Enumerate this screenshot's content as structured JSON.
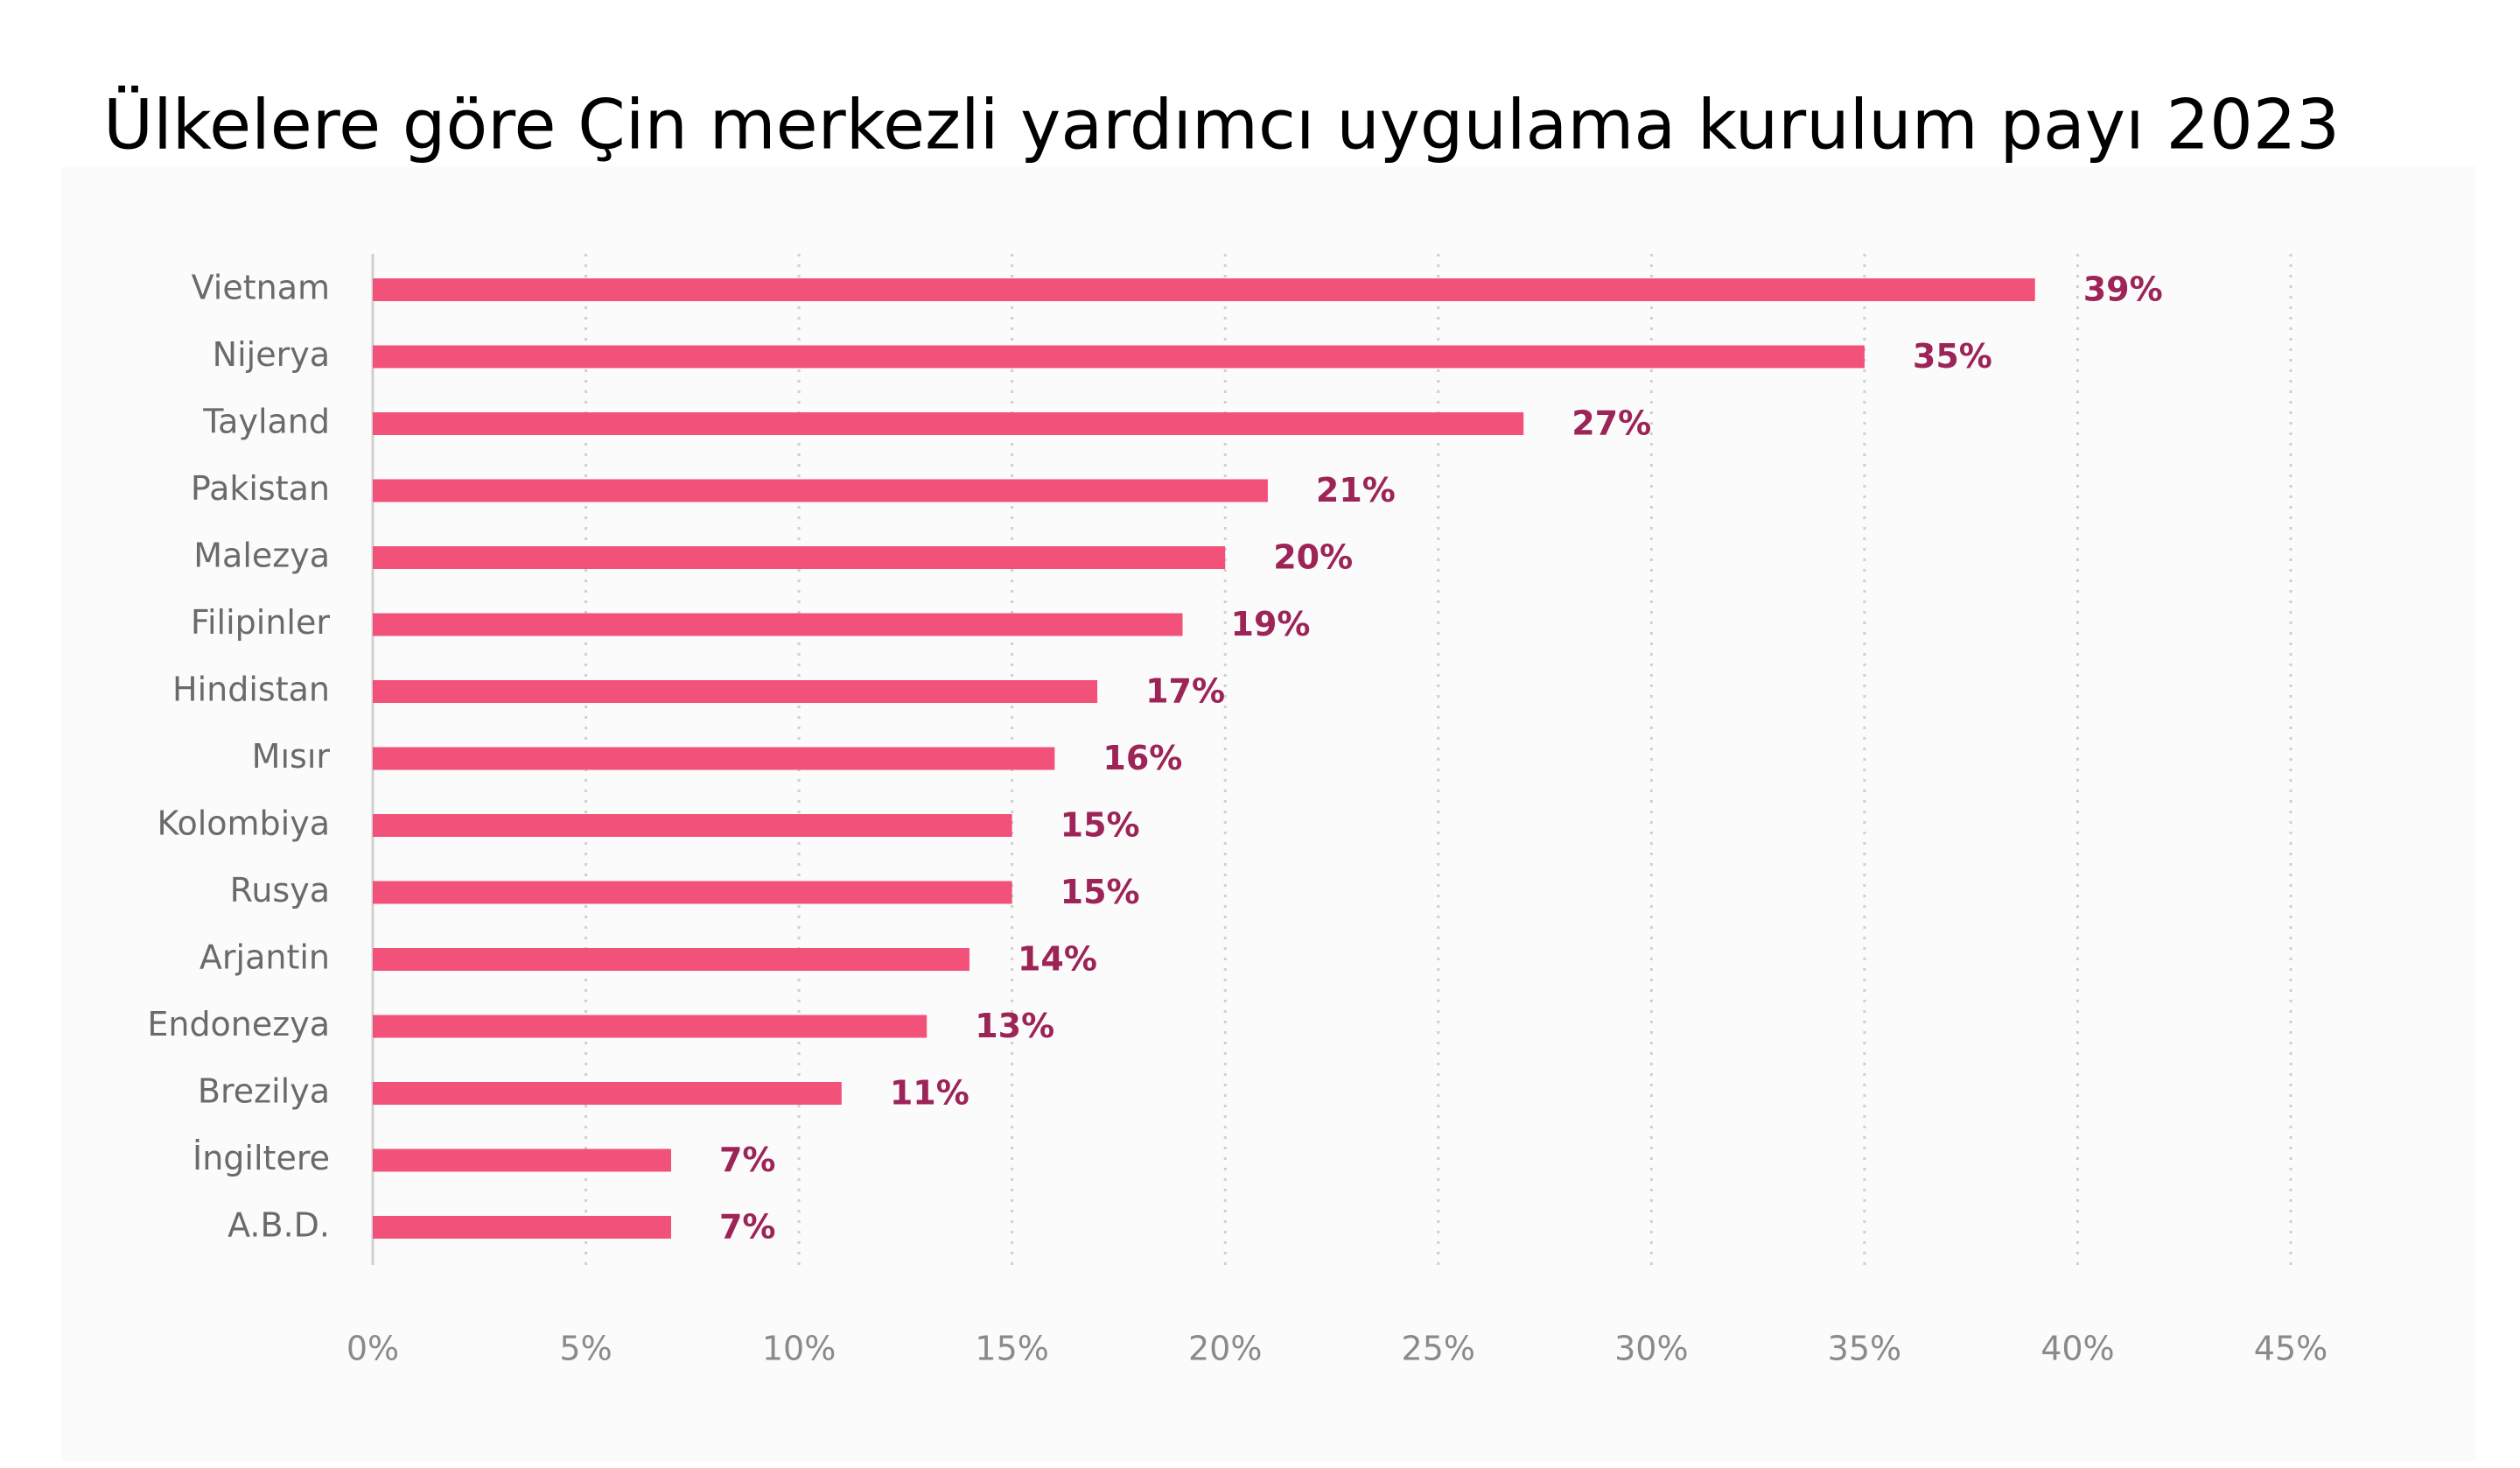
{
  "chart_data": {
    "type": "bar",
    "orientation": "horizontal",
    "title": "Ülkelere göre Çin merkezli yardımcı uygulama kurulum payı 2023",
    "categories": [
      "Vietnam",
      "Nijerya",
      "Tayland",
      "Pakistan",
      "Malezya",
      "Filipinler",
      "Hindistan",
      "Mısır",
      "Kolombiya",
      "Rusya",
      "Arjantin",
      "Endonezya",
      "Brezilya",
      "İngiltere",
      "A.B.D."
    ],
    "values": [
      39,
      35,
      27,
      21,
      20,
      19,
      17,
      16,
      15,
      15,
      14,
      13,
      11,
      7,
      7
    ],
    "value_labels": [
      "39%",
      "35%",
      "27%",
      "21%",
      "20%",
      "19%",
      "17%",
      "16%",
      "15%",
      "15%",
      "14%",
      "13%",
      "11%",
      "7%",
      "7%"
    ],
    "color": "#f2517a",
    "xlim": [
      0,
      45
    ],
    "xticks": [
      {
        "value": 0,
        "label": "0%"
      },
      {
        "value": 5,
        "label": "5%"
      },
      {
        "value": 10,
        "label": "10%"
      },
      {
        "value": 15,
        "label": "15%"
      },
      {
        "value": 20,
        "label": "20%"
      },
      {
        "value": 25,
        "label": "25%"
      },
      {
        "value": 30,
        "label": "30%"
      },
      {
        "value": 35,
        "label": "35%"
      },
      {
        "value": 40,
        "label": "40%"
      },
      {
        "value": 45,
        "label": "45%"
      }
    ],
    "grid": true
  }
}
